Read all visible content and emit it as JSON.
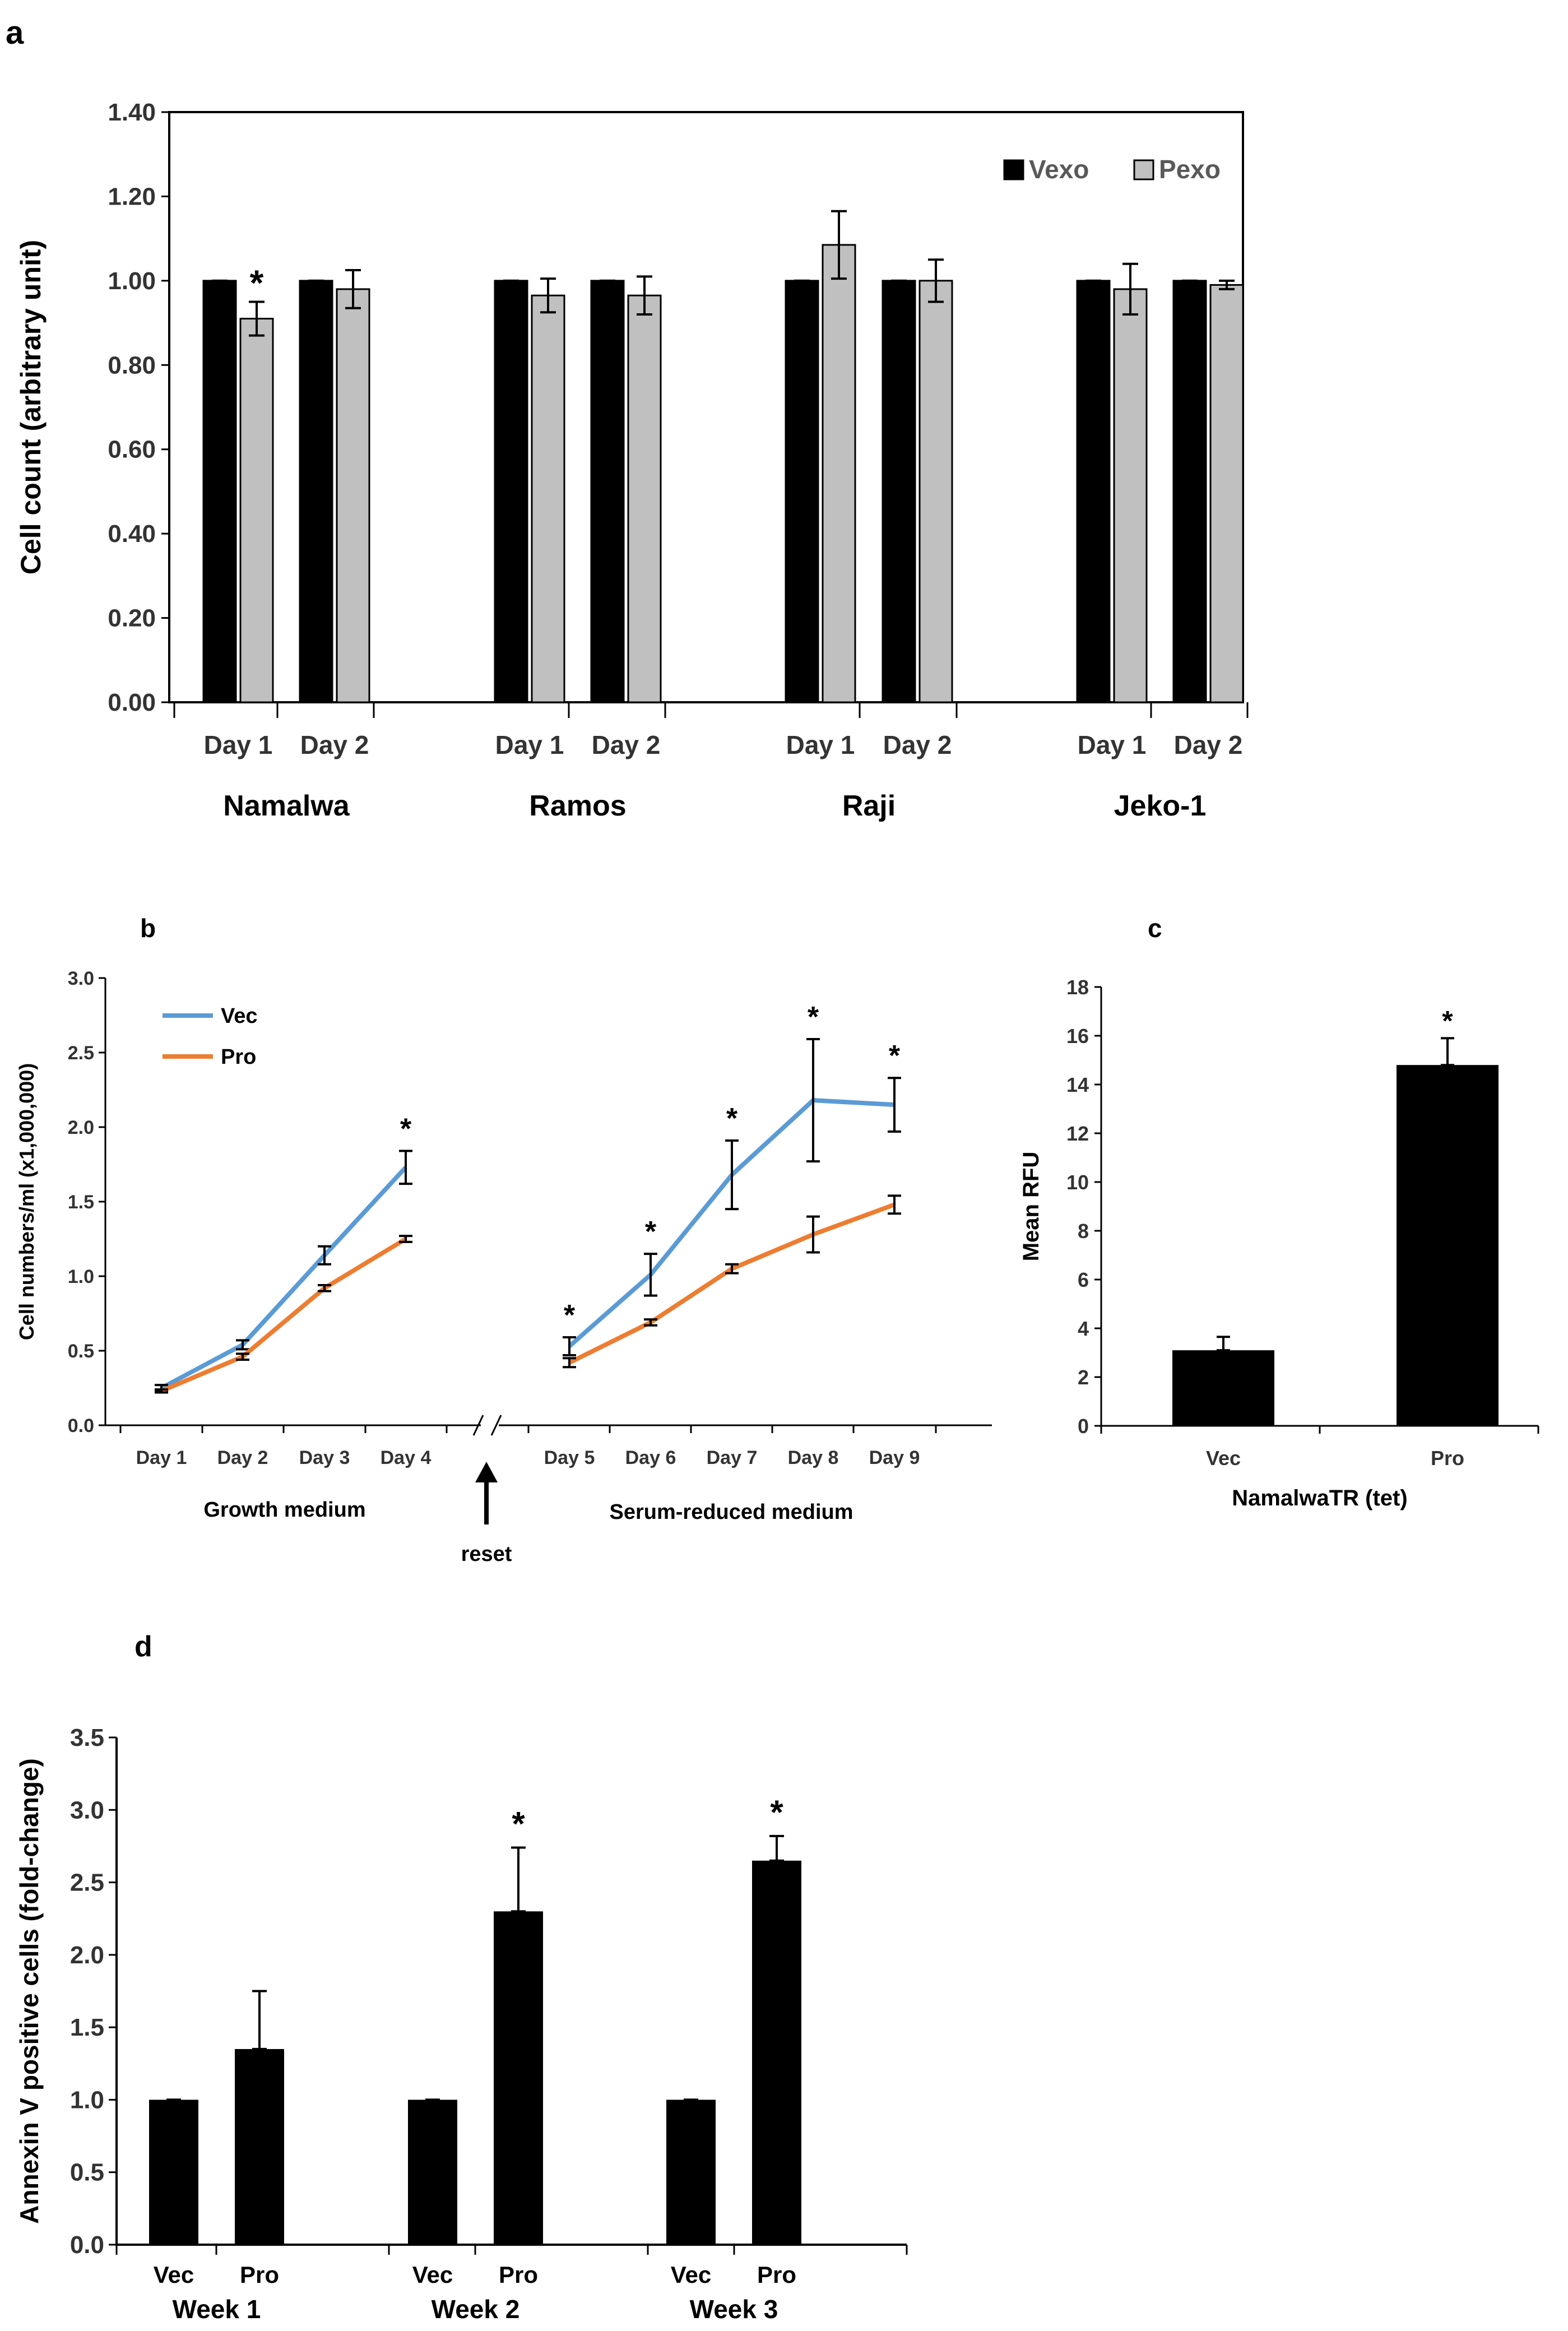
{
  "panels": {
    "a": {
      "letter": "a"
    },
    "b": {
      "letter": "b"
    },
    "c": {
      "letter": "c"
    },
    "d": {
      "letter": "d"
    }
  },
  "colors": {
    "vexo": "#000000",
    "pexo": "#c0c0c0",
    "vec_line": "#5b9bd5",
    "pro_line": "#ed7d31",
    "bar_black": "#000000"
  },
  "chart_data": [
    {
      "id": "a",
      "type": "bar",
      "ylabel": "Cell count (arbitrary unit)",
      "ylim": [
        0,
        1.4
      ],
      "yticks": [
        "0.00",
        "0.20",
        "0.40",
        "0.60",
        "0.80",
        "1.00",
        "1.20",
        "1.40"
      ],
      "groups": [
        "Namalwa",
        "Ramos",
        "Raji",
        "Jeko-1"
      ],
      "categories": [
        "Day 1",
        "Day 2",
        "Day 1",
        "Day 2",
        "Day 1",
        "Day 2",
        "Day 1",
        "Day 2"
      ],
      "legend": [
        "Vexo",
        "Pexo"
      ],
      "legend_position": "top-right",
      "series": [
        {
          "name": "Vexo",
          "values": [
            1.0,
            1.0,
            1.0,
            1.0,
            1.0,
            1.0,
            1.0,
            1.0
          ],
          "errors": [
            0,
            0,
            0,
            0,
            0,
            0,
            0,
            0
          ]
        },
        {
          "name": "Pexo",
          "values": [
            0.91,
            0.98,
            0.965,
            0.965,
            1.085,
            1.0,
            0.98,
            0.99
          ],
          "errors": [
            0.04,
            0.045,
            0.04,
            0.045,
            0.08,
            0.05,
            0.06,
            0.01
          ]
        }
      ],
      "significance": [
        {
          "category_index": 0,
          "series": "Pexo",
          "label": "*"
        }
      ]
    },
    {
      "id": "b",
      "type": "line",
      "ylabel": "Cell numbers/ml (x1,000,000)",
      "ylim": [
        0,
        3.0
      ],
      "yticks": [
        "0.0",
        "0.5",
        "1.0",
        "1.5",
        "2.0",
        "2.5",
        "3.0"
      ],
      "x": [
        "Day 1",
        "Day 2",
        "Day 3",
        "Day 4",
        "Day 5",
        "Day 6",
        "Day 7",
        "Day 8",
        "Day 9"
      ],
      "segments": [
        "Growth medium",
        "Serum-reduced medium"
      ],
      "break_annotation": "reset",
      "legend": [
        "Vec",
        "Pro"
      ],
      "legend_position": "top-left",
      "series": [
        {
          "name": "Vec",
          "values": [
            0.25,
            0.54,
            1.14,
            1.73,
            0.53,
            1.01,
            1.68,
            2.18,
            2.15
          ],
          "errors": [
            0.02,
            0.03,
            0.06,
            0.11,
            0.06,
            0.14,
            0.23,
            0.41,
            0.18
          ]
        },
        {
          "name": "Pro",
          "values": [
            0.23,
            0.46,
            0.92,
            1.25,
            0.42,
            0.69,
            1.05,
            1.28,
            1.48
          ],
          "errors": [
            0.01,
            0.02,
            0.02,
            0.02,
            0.03,
            0.02,
            0.03,
            0.12,
            0.06
          ]
        }
      ],
      "significance": [
        "",
        "",
        "",
        "*",
        "*",
        "*",
        "*",
        "*",
        "*"
      ]
    },
    {
      "id": "c",
      "type": "bar",
      "ylabel": "Mean RFU",
      "xlabel": "NamalwaTR (tet)",
      "ylim": [
        0,
        18
      ],
      "yticks": [
        "0",
        "2",
        "4",
        "6",
        "8",
        "10",
        "12",
        "14",
        "16",
        "18"
      ],
      "categories": [
        "Vec",
        "Pro"
      ],
      "values": [
        3.1,
        14.8
      ],
      "errors": [
        0.55,
        1.1
      ],
      "significance": [
        "",
        "*"
      ]
    },
    {
      "id": "d",
      "type": "bar",
      "ylabel": "Annexin V positive cells (fold-change)",
      "ylim": [
        0,
        3.5
      ],
      "yticks": [
        "0.0",
        "0.5",
        "1.0",
        "1.5",
        "2.0",
        "2.5",
        "3.0",
        "3.5"
      ],
      "groups": [
        "Week 1",
        "Week 2",
        "Week 3"
      ],
      "categories": [
        "Vec",
        "Pro",
        "Vec",
        "Pro",
        "Vec",
        "Pro"
      ],
      "values": [
        1.0,
        1.35,
        1.0,
        2.3,
        1.0,
        2.65
      ],
      "errors": [
        0,
        0.4,
        0,
        0.44,
        0,
        0.17
      ],
      "significance": [
        "",
        "",
        "",
        "*",
        "",
        "*"
      ]
    }
  ]
}
